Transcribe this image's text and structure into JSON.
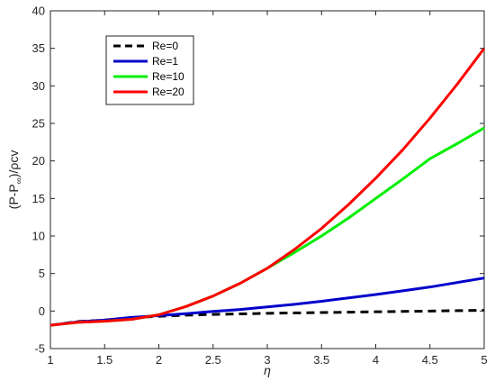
{
  "chart_data": {
    "type": "line",
    "xlabel": "η",
    "ylabel_main": "(P-P",
    "ylabel_sub": "∞",
    "ylabel_tail": ")/ρcv",
    "xlim": [
      1,
      5
    ],
    "ylim": [
      -5,
      40
    ],
    "xticks": [
      1,
      1.5,
      2,
      2.5,
      3,
      3.5,
      4,
      4.5,
      5
    ],
    "yticks": [
      -5,
      0,
      5,
      10,
      15,
      20,
      25,
      30,
      35,
      40
    ],
    "xtick_labels": [
      "1",
      "1.5",
      "2",
      "2.5",
      "3",
      "3.5",
      "4",
      "4.5",
      "5"
    ],
    "ytick_labels": [
      "-5",
      "0",
      "5",
      "10",
      "15",
      "20",
      "25",
      "30",
      "35",
      "40"
    ],
    "grid": false,
    "legend_position": "upper-left",
    "x": [
      1,
      1.25,
      1.5,
      1.75,
      2,
      2.25,
      2.5,
      2.75,
      3,
      3.25,
      3.5,
      3.75,
      4,
      4.25,
      4.5,
      4.75,
      5
    ],
    "series": [
      {
        "name": "Re=0",
        "color": "#000000",
        "dash": true,
        "values": [
          -1.9,
          -1.4,
          -1.2,
          -0.9,
          -0.7,
          -0.55,
          -0.45,
          -0.38,
          -0.3,
          -0.25,
          -0.2,
          -0.15,
          -0.1,
          -0.05,
          0.0,
          0.05,
          0.1
        ]
      },
      {
        "name": "Re=1",
        "color": "#0000cc",
        "dash": false,
        "values": [
          -1.9,
          -1.45,
          -1.2,
          -0.85,
          -0.6,
          -0.35,
          -0.05,
          0.2,
          0.55,
          0.9,
          1.3,
          1.75,
          2.2,
          2.7,
          3.2,
          3.8,
          4.4
        ]
      },
      {
        "name": "Re=10",
        "color": "#00ee00",
        "dash": false,
        "values": [
          -1.9,
          -1.5,
          -1.35,
          -1.1,
          -0.5,
          0.6,
          2.0,
          3.7,
          5.7,
          7.8,
          10.0,
          12.4,
          15.0,
          17.6,
          20.3,
          22.3,
          24.4
        ]
      },
      {
        "name": "Re=20",
        "color": "#ff0000",
        "dash": false,
        "values": [
          -1.9,
          -1.5,
          -1.35,
          -1.1,
          -0.5,
          0.6,
          2.0,
          3.7,
          5.7,
          8.2,
          11.0,
          14.2,
          17.7,
          21.5,
          25.7,
          30.2,
          35.0
        ]
      }
    ]
  }
}
